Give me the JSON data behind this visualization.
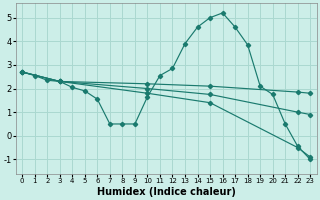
{
  "xlabel": "Humidex (Indice chaleur)",
  "bg_color": "#cceee8",
  "grid_color": "#aad8d0",
  "line_color": "#1a7a6e",
  "xlim": [
    -0.5,
    23.5
  ],
  "ylim": [
    -1.6,
    5.6
  ],
  "yticks": [
    -1,
    0,
    1,
    2,
    3,
    4,
    5
  ],
  "xticks": [
    0,
    1,
    2,
    3,
    4,
    5,
    6,
    7,
    8,
    9,
    10,
    11,
    12,
    13,
    14,
    15,
    16,
    17,
    18,
    19,
    20,
    21,
    22,
    23
  ],
  "series": [
    {
      "x": [
        0,
        1,
        2,
        3,
        4,
        5,
        6,
        7,
        8,
        9,
        10,
        11,
        12,
        13,
        14,
        15,
        16,
        17,
        18,
        19,
        20,
        21,
        22,
        23
      ],
      "y": [
        2.7,
        2.55,
        2.35,
        2.3,
        2.05,
        1.9,
        1.55,
        0.5,
        0.5,
        0.5,
        1.65,
        2.55,
        2.85,
        3.9,
        4.6,
        5.0,
        5.2,
        4.6,
        3.85,
        2.1,
        1.75,
        0.5,
        -0.45,
        -1.0
      ]
    },
    {
      "x": [
        0,
        3,
        10,
        15,
        22,
        23
      ],
      "y": [
        2.7,
        2.3,
        2.2,
        2.1,
        1.85,
        1.8
      ]
    },
    {
      "x": [
        0,
        3,
        10,
        15,
        22,
        23
      ],
      "y": [
        2.7,
        2.3,
        2.0,
        1.75,
        1.0,
        0.9
      ]
    },
    {
      "x": [
        0,
        3,
        10,
        15,
        22,
        23
      ],
      "y": [
        2.7,
        2.3,
        1.8,
        1.4,
        -0.5,
        -0.9
      ]
    }
  ]
}
